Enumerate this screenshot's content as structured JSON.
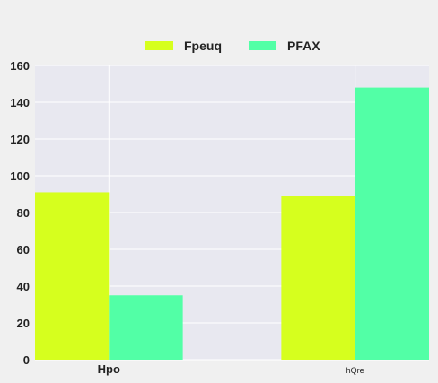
{
  "chart_data": {
    "type": "bar",
    "title": "",
    "xlabel": "",
    "ylabel": "",
    "categories": [
      "Hpo",
      "hQre"
    ],
    "series": [
      {
        "name": "Fpeuq",
        "values": [
          91,
          89
        ],
        "color": "#d6ff1e"
      },
      {
        "name": "PFAX",
        "values": [
          35,
          148
        ],
        "color": "#52ffa6"
      }
    ],
    "ylim": [
      0,
      160
    ],
    "yticks": [
      0,
      20,
      40,
      60,
      80,
      100,
      120,
      140,
      160
    ],
    "grid": true,
    "legend_position": "top-center",
    "background_color": "#f0f0f0",
    "plot_background_color": "#e8e8f0"
  }
}
